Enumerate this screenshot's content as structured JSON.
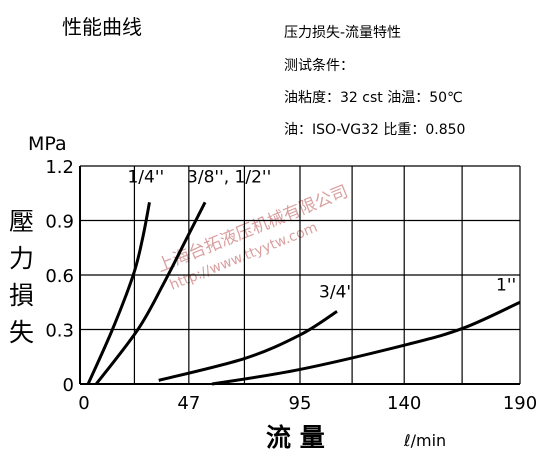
{
  "chart_data": {
    "type": "line",
    "title": "性能曲线",
    "notes": [
      "压力损失-流量特性",
      "测试条件：",
      "油粘度：32 cst  油温：50℃",
      "油：ISO-VG32  比重：0.850"
    ],
    "y_unit": "MPa",
    "ylabel": "壓力損失",
    "xlabel": "流 量",
    "x_unit": "ℓ/min",
    "watermark": [
      "上海台拓液压机械有限公司",
      "http://www.ttyytw.com"
    ],
    "xlim": [
      0,
      190
    ],
    "xticks": [
      0,
      47,
      95,
      140,
      190
    ],
    "ylim": [
      0,
      1.2
    ],
    "yticks": [
      0,
      0.3,
      0.6,
      0.9,
      1.2
    ],
    "grid": true,
    "series": [
      {
        "name": "1/4''",
        "color": "#000000",
        "x": [
          3.5,
          14,
          23,
          27,
          30
        ],
        "values": [
          0,
          0.3,
          0.6,
          0.8,
          1.0
        ]
      },
      {
        "name": "3/8'', 1/2''",
        "color": "#000000",
        "x": [
          7,
          25,
          36,
          46,
          54
        ],
        "values": [
          0,
          0.3,
          0.55,
          0.8,
          1.0
        ]
      },
      {
        "name": "3/4'",
        "color": "#000000",
        "x": [
          34,
          71,
          95,
          111
        ],
        "values": [
          0.02,
          0.14,
          0.27,
          0.4
        ]
      },
      {
        "name": "1''",
        "color": "#000000",
        "x": [
          57,
          95,
          142,
          166,
          190
        ],
        "values": [
          0,
          0.08,
          0.22,
          0.31,
          0.45
        ]
      }
    ]
  }
}
